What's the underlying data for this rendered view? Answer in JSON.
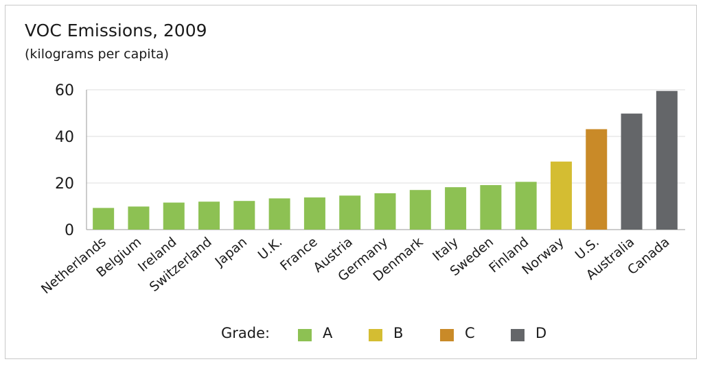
{
  "chart_data": {
    "type": "bar",
    "title": "VOC Emissions, 2009",
    "subtitle": "(kilograms per capita)",
    "categories": [
      "Netherlands",
      "Belgium",
      "Ireland",
      "Switzerland",
      "Japan",
      "U.K.",
      "France",
      "Austria",
      "Germany",
      "Denmark",
      "Italy",
      "Sweden",
      "Finland",
      "Norway",
      "U.S.",
      "Australia",
      "Canada"
    ],
    "values": [
      9.3,
      9.9,
      11.6,
      12.0,
      12.3,
      13.4,
      13.8,
      14.6,
      15.6,
      17.0,
      18.2,
      19.1,
      20.5,
      29.2,
      43.1,
      49.8,
      59.5
    ],
    "grades": [
      "A",
      "A",
      "A",
      "A",
      "A",
      "A",
      "A",
      "A",
      "A",
      "A",
      "A",
      "A",
      "A",
      "B",
      "C",
      "D",
      "D"
    ],
    "ylim": [
      0,
      60
    ],
    "yticks": [
      0,
      20,
      40,
      60
    ],
    "grid": true,
    "legend": {
      "title": "Grade:",
      "position": "bottom",
      "items": [
        {
          "label": "A",
          "color": "#8dc153"
        },
        {
          "label": "B",
          "color": "#d4bd32"
        },
        {
          "label": "C",
          "color": "#c98a28"
        },
        {
          "label": "D",
          "color": "#646669"
        }
      ]
    }
  }
}
